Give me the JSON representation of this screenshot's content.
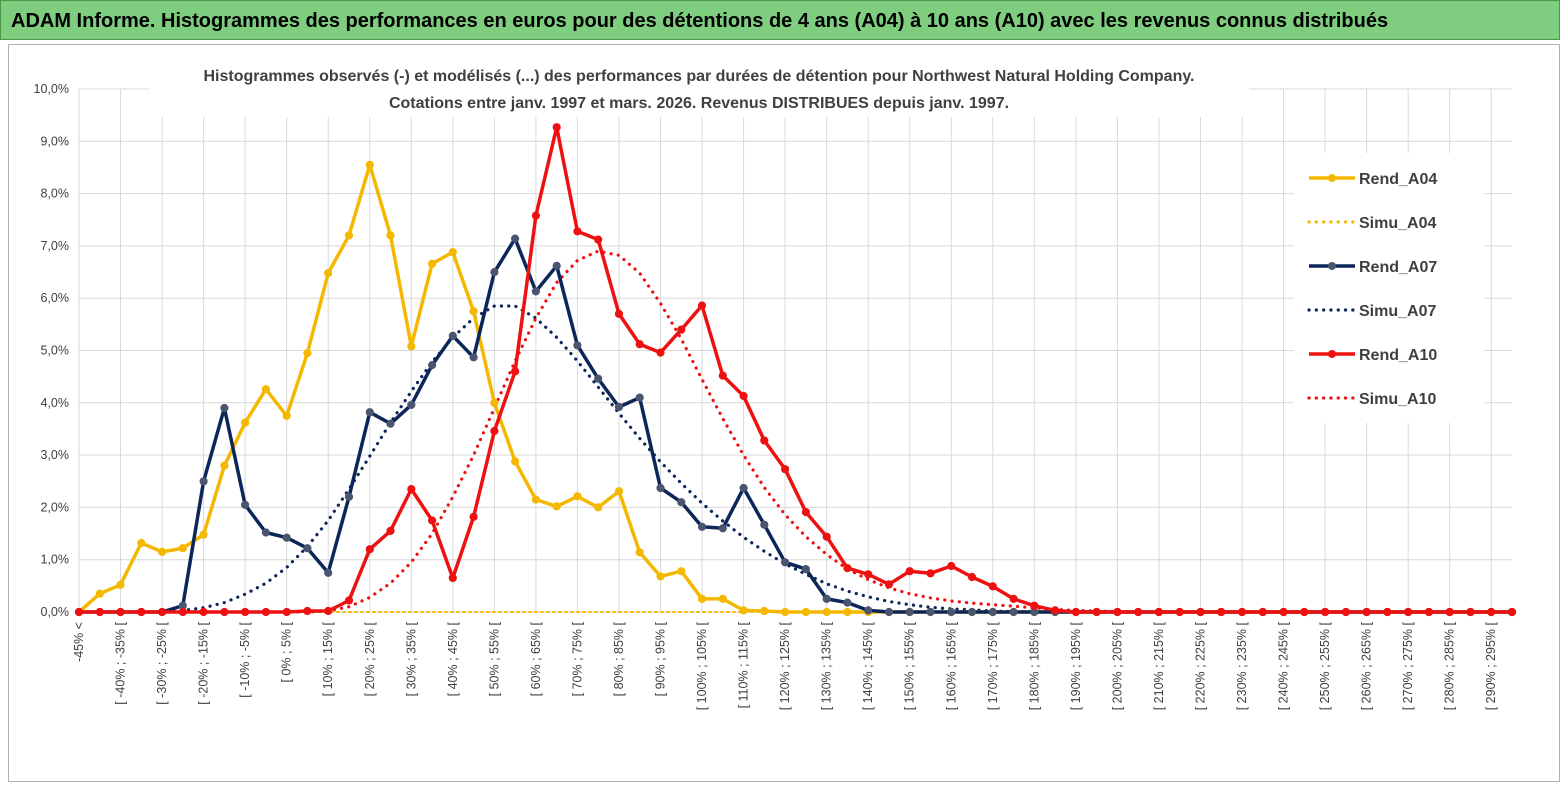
{
  "banner": {
    "text": "ADAM Informe. Histogrammes des performances en euros pour des détentions de 4 ans (A04) à 10 ans (A10) avec les revenus connus distribués"
  },
  "chart_data": {
    "type": "line",
    "title_lines": [
      "Histogrammes observés (-) et modélisés (...) des performances par durées de détention pour Northwest Natural Holding Company.",
      "Cotations entre janv. 1997 et mars. 2026. Revenus DISTRIBUES depuis janv. 1997."
    ],
    "xlabel": "",
    "ylabel": "",
    "ylim": [
      0,
      10
    ],
    "y_ticks": [
      "0,0%",
      "1,0%",
      "2,0%",
      "3,0%",
      "4,0%",
      "5,0%",
      "6,0%",
      "7,0%",
      "8,0%",
      "9,0%",
      "10,0%"
    ],
    "grid": true,
    "legend_position": "right",
    "x_labels": [
      "-45% <",
      "[ -40% ; -35% [",
      "[ -30% ; -25% [",
      "[ -20% ; -15% [",
      "[ -10% ; -5% [",
      "[ 0% ; 5% [",
      "[ 10% ; 15% [",
      "[ 20% ; 25% [",
      "[ 30% ; 35% [",
      "[ 40% ; 45% [",
      "[ 50% ; 55% [",
      "[ 60% ; 65% [",
      "[ 70% ; 75% [",
      "[ 80% ; 85% [",
      "[ 90% ; 95% [",
      "[ 100% ; 105% [",
      "[ 110% ; 115% [",
      "[ 120% ; 125% [",
      "[ 130% ; 135% [",
      "[ 140% ; 145% [",
      "[ 150% ; 155% [",
      "[ 160% ; 165% [",
      "[ 170% ; 175% [",
      "[ 180% ; 185% [",
      "[ 190% ; 195% [",
      "[ 200% ; 205% [",
      "[ 210% ; 215% [",
      "[ 220% ; 225% [",
      "[ 230% ; 235% [",
      "[ 240% ; 245% [",
      "[ 250% ; 255% [",
      "[ 260% ; 265% [",
      "[ 270% ; 275% [",
      "[ 280% ; 285% [",
      "[ 290% ; 295% ["
    ],
    "series": [
      {
        "name": "Rend_A04",
        "style": "solid",
        "color": "#f5b800",
        "values": [
          0.0,
          0.35,
          0.52,
          1.32,
          1.15,
          1.22,
          1.48,
          2.8,
          3.62,
          4.26,
          3.75,
          4.95,
          6.48,
          7.2,
          8.55,
          7.2,
          5.08,
          6.66,
          6.88,
          5.75,
          4.0,
          2.88,
          2.15,
          2.02,
          2.21,
          2.0,
          2.31,
          1.14,
          0.68,
          0.78,
          0.25,
          0.25,
          0.03,
          0.02,
          0.0,
          0.0,
          0.0,
          0,
          0,
          0,
          0,
          0,
          0,
          0,
          0,
          0,
          0,
          0,
          0,
          0,
          0,
          0,
          0,
          0,
          0,
          0,
          0,
          0,
          0,
          0,
          0,
          0,
          0,
          0,
          0,
          0,
          0,
          0,
          0,
          0
        ]
      },
      {
        "name": "Simu_A04",
        "style": "dotted",
        "color": "#f5b800",
        "values": [
          0,
          0,
          0,
          0,
          0,
          0,
          0,
          0,
          0,
          0,
          0,
          0,
          0,
          0,
          0,
          0,
          0,
          0,
          0,
          0,
          0,
          0,
          0,
          0,
          0,
          0,
          0,
          0,
          0,
          0,
          0,
          0,
          0,
          0,
          0,
          0,
          0,
          0,
          0,
          0,
          0,
          0,
          0,
          0,
          0,
          0,
          0,
          0,
          0,
          0,
          0,
          0,
          0,
          0,
          0,
          0,
          0,
          0,
          0,
          0,
          0,
          0,
          0,
          0,
          0,
          0,
          0,
          0,
          0,
          0
        ]
      },
      {
        "name": "Rend_A07",
        "style": "solid",
        "color": "#0d2659",
        "values": [
          0.0,
          0.0,
          0.0,
          0.0,
          0.0,
          0.12,
          2.5,
          3.9,
          2.05,
          1.52,
          1.42,
          1.22,
          0.75,
          2.2,
          3.82,
          3.6,
          3.96,
          4.72,
          5.28,
          4.87,
          6.5,
          7.14,
          6.13,
          6.62,
          5.1,
          4.46,
          3.92,
          4.1,
          2.37,
          2.1,
          1.63,
          1.6,
          2.37,
          1.67,
          0.95,
          0.82,
          0.25,
          0.18,
          0.03,
          0.0,
          0.0,
          0,
          0,
          0,
          0,
          0,
          0,
          0,
          0,
          0,
          0,
          0,
          0,
          0,
          0,
          0,
          0,
          0,
          0,
          0,
          0,
          0,
          0,
          0,
          0,
          0,
          0,
          0,
          0,
          0
        ]
      },
      {
        "name": "Simu_A07",
        "style": "dotted",
        "color": "#0d2659",
        "values": [
          0,
          0,
          0,
          0,
          0.01,
          0.03,
          0.08,
          0.18,
          0.34,
          0.55,
          0.85,
          1.25,
          1.75,
          2.35,
          2.98,
          3.62,
          4.22,
          4.78,
          5.25,
          5.62,
          5.85,
          5.85,
          5.62,
          5.25,
          4.8,
          4.3,
          3.8,
          3.32,
          2.87,
          2.46,
          2.08,
          1.74,
          1.43,
          1.16,
          0.92,
          0.72,
          0.54,
          0.4,
          0.29,
          0.2,
          0.14,
          0.09,
          0.06,
          0.04,
          0.02,
          0.01,
          0.01,
          0,
          0,
          0,
          0,
          0,
          0,
          0,
          0,
          0,
          0,
          0,
          0,
          0,
          0,
          0,
          0,
          0,
          0,
          0,
          0,
          0,
          0,
          0
        ]
      },
      {
        "name": "Rend_A10",
        "style": "solid",
        "color": "#ee1111",
        "values": [
          0,
          0,
          0,
          0,
          0,
          0,
          0,
          0,
          0,
          0,
          0.0,
          0.02,
          0.02,
          0.22,
          1.2,
          1.55,
          2.35,
          1.75,
          0.65,
          1.82,
          3.46,
          4.6,
          7.58,
          9.27,
          7.28,
          7.12,
          5.7,
          5.12,
          4.96,
          5.4,
          5.86,
          4.52,
          4.13,
          3.28,
          2.73,
          1.91,
          1.44,
          0.84,
          0.72,
          0.53,
          0.78,
          0.74,
          0.88,
          0.67,
          0.49,
          0.25,
          0.12,
          0.03,
          0.0,
          0,
          0,
          0,
          0,
          0,
          0,
          0,
          0,
          0,
          0,
          0,
          0,
          0,
          0,
          0,
          0,
          0,
          0,
          0,
          0,
          0
        ]
      },
      {
        "name": "Simu_A10",
        "style": "dotted",
        "color": "#ee1111",
        "values": [
          0,
          0,
          0,
          0,
          0,
          0,
          0,
          0,
          0,
          0,
          0,
          0,
          0.02,
          0.1,
          0.28,
          0.55,
          0.95,
          1.5,
          2.2,
          3.0,
          3.9,
          4.8,
          5.62,
          6.3,
          6.72,
          6.9,
          6.82,
          6.48,
          5.9,
          5.22,
          4.45,
          3.7,
          3.0,
          2.38,
          1.86,
          1.44,
          1.1,
          0.82,
          0.62,
          0.46,
          0.35,
          0.27,
          0.21,
          0.17,
          0.14,
          0.11,
          0.08,
          0.05,
          0.03,
          0.02,
          0.01,
          0,
          0,
          0,
          0,
          0,
          0,
          0,
          0,
          0,
          0,
          0,
          0,
          0,
          0,
          0,
          0,
          0,
          0,
          0
        ]
      }
    ]
  }
}
